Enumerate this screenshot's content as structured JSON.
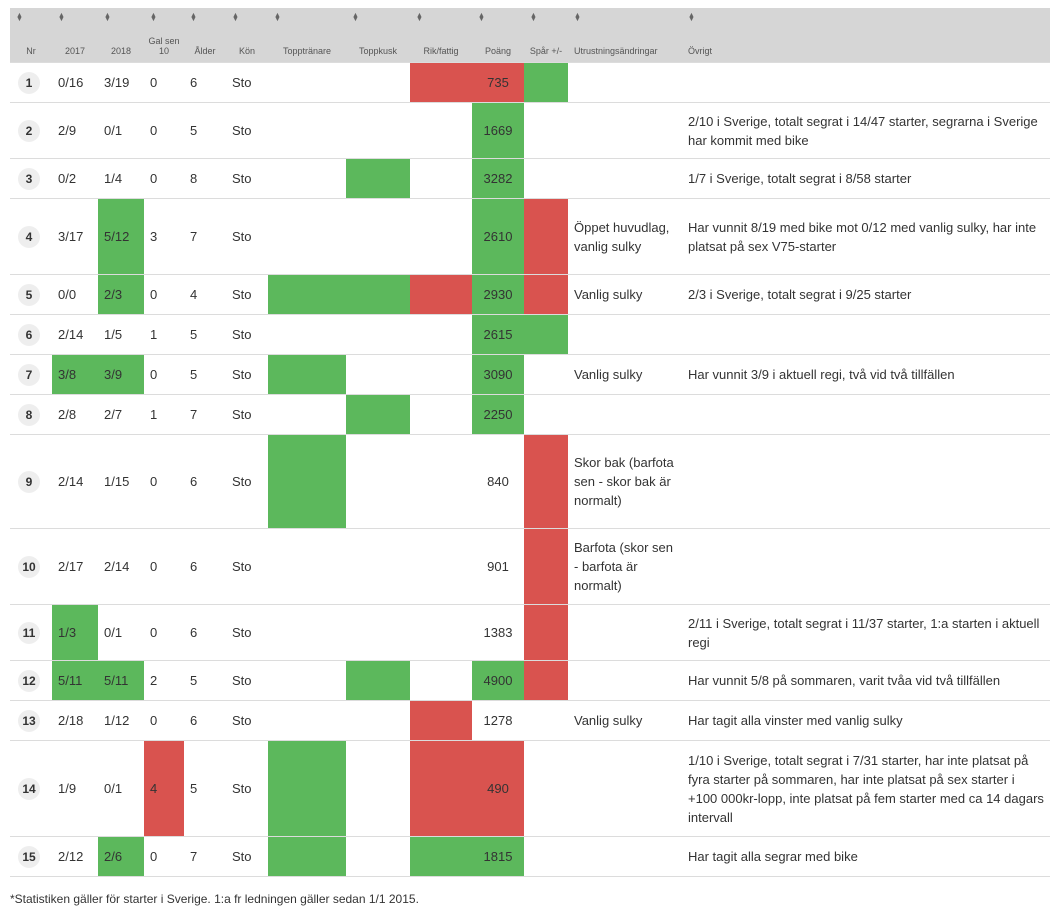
{
  "colors": {
    "good": "#5cb85c",
    "bad": "#d9534f",
    "header_bg": "#d6d6d6"
  },
  "headers": [
    "Nr",
    "2017",
    "2018",
    "Gal sen 10",
    "Ålder",
    "Kön",
    "Topptränare",
    "Toppkusk",
    "Rik/fattig",
    "Poäng",
    "Spår +/-",
    "Utrustningsändringar",
    "Övrigt"
  ],
  "sort_icon": "sort-updown-icon",
  "rows": [
    {
      "nr": "1",
      "y2017": "0/16",
      "y2018": "3/19",
      "gal": "0",
      "alder": "6",
      "kon": "Sto",
      "topptranare": "",
      "toppkusk": "",
      "rik": "r",
      "poang": "735",
      "spar": "g",
      "utrustning": "",
      "ovrigt": "",
      "marks": {
        "y2017": "",
        "y2018": "",
        "gal": "",
        "topptranare": "",
        "toppkusk": "",
        "poang": "r"
      }
    },
    {
      "nr": "2",
      "y2017": "2/9",
      "y2018": "0/1",
      "gal": "0",
      "alder": "5",
      "kon": "Sto",
      "rik": "",
      "poang": "1669",
      "spar": "",
      "utrustning": "",
      "ovrigt": "2/10 i Sverige, totalt segrat i 14/47 starter, segrarna i Sverige har kommit med bike",
      "marks": {
        "y2017": "",
        "y2018": "",
        "gal": "",
        "topptranare": "",
        "toppkusk": "",
        "poang": "g"
      }
    },
    {
      "nr": "3",
      "y2017": "0/2",
      "y2018": "1/4",
      "gal": "0",
      "alder": "8",
      "kon": "Sto",
      "rik": "",
      "poang": "3282",
      "spar": "",
      "utrustning": "",
      "ovrigt": "1/7 i Sverige, totalt segrat i 8/58 starter",
      "marks": {
        "y2017": "",
        "y2018": "",
        "gal": "",
        "topptranare": "",
        "toppkusk": "g",
        "poang": "g"
      }
    },
    {
      "nr": "4",
      "y2017": "3/17",
      "y2018": "5/12",
      "gal": "3",
      "alder": "7",
      "kon": "Sto",
      "rik": "",
      "poang": "2610",
      "spar": "r",
      "utrustning": "Öppet huvudlag, vanlig sulky",
      "ovrigt": "Har vunnit 8/19 med bike mot 0/12 med vanlig sulky, har inte platsat på sex V75-starter",
      "marks": {
        "y2017": "",
        "y2018": "g",
        "gal": "",
        "topptranare": "",
        "toppkusk": "",
        "poang": "g"
      }
    },
    {
      "nr": "5",
      "y2017": "0/0",
      "y2018": "2/3",
      "gal": "0",
      "alder": "4",
      "kon": "Sto",
      "rik": "r",
      "poang": "2930",
      "spar": "r",
      "utrustning": "Vanlig sulky",
      "ovrigt": "2/3 i Sverige, totalt segrat i 9/25 starter",
      "marks": {
        "y2017": "",
        "y2018": "g",
        "gal": "",
        "topptranare": "g",
        "toppkusk": "g",
        "poang": "g"
      }
    },
    {
      "nr": "6",
      "y2017": "2/14",
      "y2018": "1/5",
      "gal": "1",
      "alder": "5",
      "kon": "Sto",
      "rik": "",
      "poang": "2615",
      "spar": "g",
      "utrustning": "",
      "ovrigt": "",
      "marks": {
        "y2017": "",
        "y2018": "",
        "gal": "",
        "topptranare": "",
        "toppkusk": "",
        "poang": "g"
      }
    },
    {
      "nr": "7",
      "y2017": "3/8",
      "y2018": "3/9",
      "gal": "0",
      "alder": "5",
      "kon": "Sto",
      "rik": "",
      "poang": "3090",
      "spar": "",
      "utrustning": "Vanlig sulky",
      "ovrigt": "Har vunnit 3/9 i aktuell regi, två vid två tillfällen",
      "marks": {
        "y2017": "g",
        "y2018": "g",
        "gal": "",
        "topptranare": "g",
        "toppkusk": "",
        "poang": "g"
      }
    },
    {
      "nr": "8",
      "y2017": "2/8",
      "y2018": "2/7",
      "gal": "1",
      "alder": "7",
      "kon": "Sto",
      "rik": "",
      "poang": "2250",
      "spar": "",
      "utrustning": "",
      "ovrigt": "",
      "marks": {
        "y2017": "",
        "y2018": "",
        "gal": "",
        "topptranare": "",
        "toppkusk": "g",
        "poang": "g"
      }
    },
    {
      "nr": "9",
      "y2017": "2/14",
      "y2018": "1/15",
      "gal": "0",
      "alder": "6",
      "kon": "Sto",
      "rik": "",
      "poang": "840",
      "spar": "r",
      "utrustning": "Skor bak (barfota sen - skor bak är normalt)",
      "ovrigt": "",
      "marks": {
        "y2017": "",
        "y2018": "",
        "gal": "",
        "topptranare": "g",
        "toppkusk": "",
        "poang": ""
      }
    },
    {
      "nr": "10",
      "y2017": "2/17",
      "y2018": "2/14",
      "gal": "0",
      "alder": "6",
      "kon": "Sto",
      "rik": "",
      "poang": "901",
      "spar": "r",
      "utrustning": "Barfota (skor sen - barfota är normalt)",
      "ovrigt": "",
      "marks": {
        "y2017": "",
        "y2018": "",
        "gal": "",
        "topptranare": "",
        "toppkusk": "",
        "poang": ""
      }
    },
    {
      "nr": "11",
      "y2017": "1/3",
      "y2018": "0/1",
      "gal": "0",
      "alder": "6",
      "kon": "Sto",
      "rik": "",
      "poang": "1383",
      "spar": "r",
      "utrustning": "",
      "ovrigt": "2/11 i Sverige, totalt segrat i 11/37 starter, 1:a starten i aktuell regi",
      "marks": {
        "y2017": "g",
        "y2018": "",
        "gal": "",
        "topptranare": "",
        "toppkusk": "",
        "poang": ""
      }
    },
    {
      "nr": "12",
      "y2017": "5/11",
      "y2018": "5/11",
      "gal": "2",
      "alder": "5",
      "kon": "Sto",
      "rik": "",
      "poang": "4900",
      "spar": "r",
      "utrustning": "",
      "ovrigt": "Har vunnit 5/8 på sommaren, varit tvåa vid två tillfällen",
      "marks": {
        "y2017": "g",
        "y2018": "g",
        "gal": "",
        "topptranare": "",
        "toppkusk": "g",
        "poang": "g"
      }
    },
    {
      "nr": "13",
      "y2017": "2/18",
      "y2018": "1/12",
      "gal": "0",
      "alder": "6",
      "kon": "Sto",
      "rik": "r",
      "poang": "1278",
      "spar": "",
      "utrustning": "Vanlig sulky",
      "ovrigt": "Har tagit alla vinster med vanlig sulky",
      "marks": {
        "y2017": "",
        "y2018": "",
        "gal": "",
        "topptranare": "",
        "toppkusk": "",
        "poang": ""
      }
    },
    {
      "nr": "14",
      "y2017": "1/9",
      "y2018": "0/1",
      "gal": "4",
      "alder": "5",
      "kon": "Sto",
      "rik": "r",
      "poang": "490",
      "spar": "",
      "utrustning": "",
      "ovrigt": "1/10 i Sverige, totalt segrat i 7/31 starter, har inte platsat på fyra starter på sommaren, har inte platsat på sex starter i +100 000kr-lopp, inte platsat på fem starter med ca 14 dagars intervall",
      "marks": {
        "y2017": "",
        "y2018": "",
        "gal": "r",
        "topptranare": "g",
        "toppkusk": "",
        "poang": "r"
      }
    },
    {
      "nr": "15",
      "y2017": "2/12",
      "y2018": "2/6",
      "gal": "0",
      "alder": "7",
      "kon": "Sto",
      "rik": "g",
      "poang": "1815",
      "spar": "",
      "utrustning": "",
      "ovrigt": "Har tagit alla segrar med bike",
      "marks": {
        "y2017": "",
        "y2018": "g",
        "gal": "",
        "topptranare": "g",
        "toppkusk": "",
        "poang": "g"
      }
    }
  ],
  "footnote": "*Statistiken gäller för starter i Sverige. 1:a fr ledningen gäller sedan 1/1 2015."
}
